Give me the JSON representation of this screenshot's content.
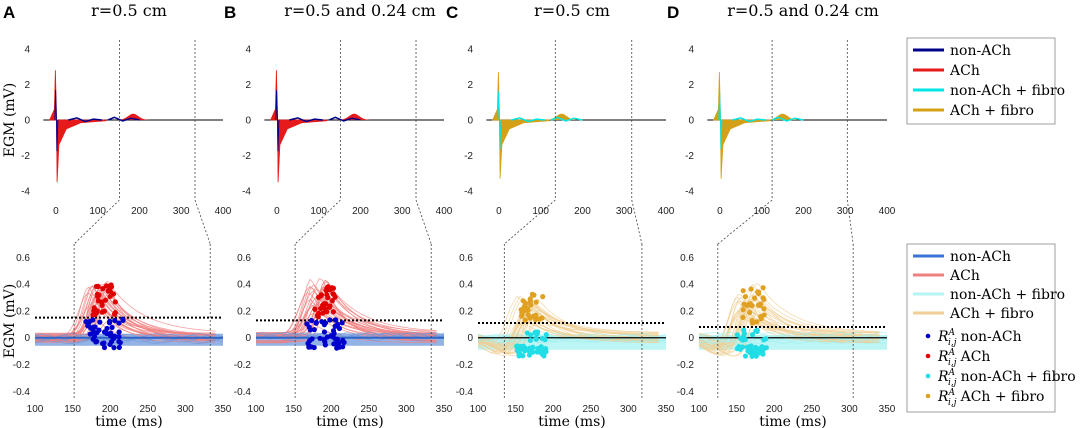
{
  "chart_data": {
    "type": "line",
    "panels": [
      {
        "letter": "A",
        "title": "r=0.5 cm",
        "fibro": false,
        "threshold": 0.15,
        "window": [
          152,
          333
        ],
        "lateMax": 0.42
      },
      {
        "letter": "B",
        "title": "r=0.5 and 0.24 cm",
        "fibro": false,
        "threshold": 0.13,
        "window": [
          152,
          333
        ],
        "lateMax": 0.44
      },
      {
        "letter": "C",
        "title": "r=0.5 cm",
        "fibro": true,
        "threshold": 0.11,
        "window": [
          135,
          318
        ],
        "lateMax": 0.35
      },
      {
        "letter": "D",
        "title": "r=0.5 and 0.24 cm",
        "fibro": true,
        "threshold": 0.08,
        "window": [
          125,
          305
        ],
        "lateMax": 0.4
      }
    ],
    "top_axes": {
      "xlim": [
        -50,
        400
      ],
      "ylim": [
        -4.5,
        4.5
      ],
      "xticks": [
        0,
        100,
        200,
        300,
        400
      ],
      "yticks": [
        -4,
        -2,
        0,
        2,
        4
      ],
      "xlabel": "",
      "ylabel": "EGM (mV)"
    },
    "bottom_axes": {
      "xlim": [
        100,
        350
      ],
      "ylim": [
        -0.45,
        0.7
      ],
      "xticks": [
        100,
        150,
        200,
        250,
        300,
        350
      ],
      "yticks": [
        -0.4,
        -0.2,
        0,
        0.2,
        0.4,
        0.6
      ],
      "xlabel": "time (ms)",
      "ylabel": "EGM (mV)"
    },
    "top_legend": [
      {
        "label": "non-ACh",
        "color": "#00008b"
      },
      {
        "label": "ACh",
        "color": "#e61a1a"
      },
      {
        "label": "non-ACh + fibro",
        "color": "#00e5e5"
      },
      {
        "label": "ACh + fibro",
        "color": "#d4a017"
      }
    ],
    "bottom_legend_lines": [
      {
        "label": "non-ACh",
        "color": "#3b74d4"
      },
      {
        "label": "ACh",
        "color": "#f08080"
      },
      {
        "label": "non-ACh + fibro",
        "color": "#b6f4f4"
      },
      {
        "label": "ACh + fibro",
        "color": "#efcf96"
      }
    ],
    "bottom_legend_markers": [
      {
        "symbol": "R",
        "sup": "A",
        "sub": "i,j",
        "label": "non-ACh",
        "color": "#0000cc"
      },
      {
        "symbol": "R",
        "sup": "A",
        "sub": "i,j",
        "label": "ACh",
        "color": "#e00000"
      },
      {
        "symbol": "R",
        "sup": "A",
        "sub": "i,j",
        "label": "non-ACh + fibro",
        "color": "#22dde6"
      },
      {
        "symbol": "R",
        "sup": "A",
        "sub": "i,j",
        "label": "ACh + fibro",
        "color": "#e0a020"
      }
    ]
  }
}
